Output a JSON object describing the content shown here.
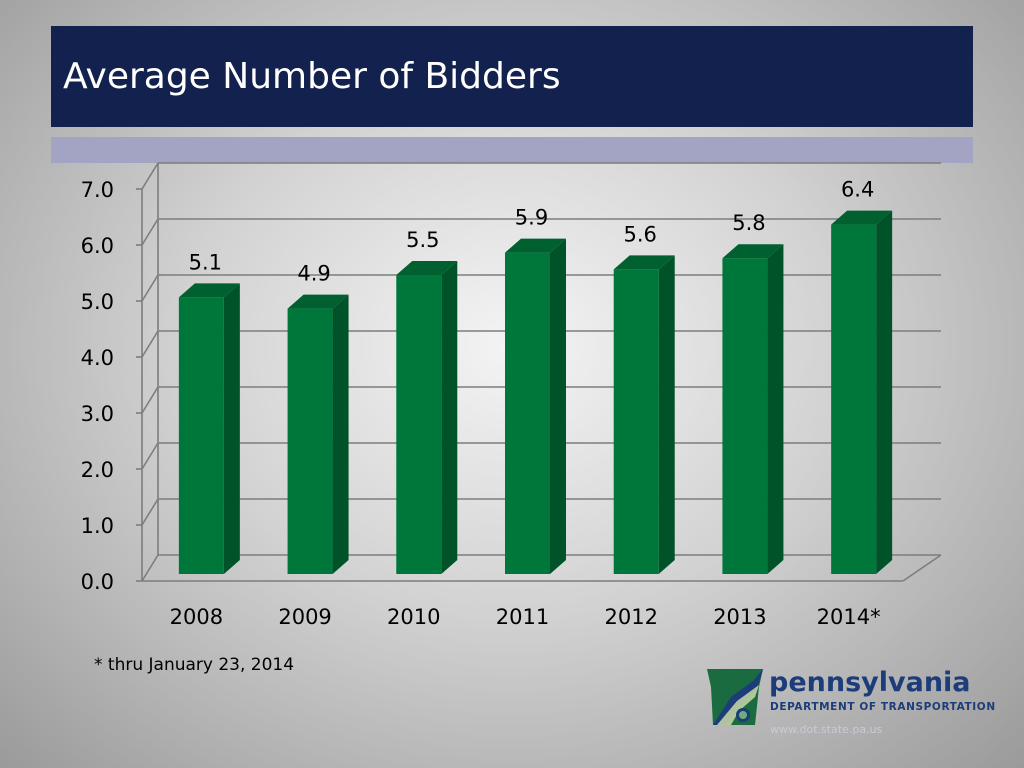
{
  "slide": {
    "title": "Average Number of Bidders",
    "footnote": "* thru January 23, 2014"
  },
  "logo": {
    "name": "pennsylvania",
    "department": "DEPARTMENT OF TRANSPORTATION",
    "url": "www.dot.state.pa.us"
  },
  "colors": {
    "title_bar": "#13214f",
    "sub_bar": "#a3a3c4",
    "bar_front": "#00773a",
    "bar_side": "#005228",
    "bar_top": "#00602f"
  },
  "chart_data": {
    "type": "bar",
    "categories": [
      "2008",
      "2009",
      "2010",
      "2011",
      "2012",
      "2013",
      "2014*"
    ],
    "values": [
      5.1,
      4.9,
      5.5,
      5.9,
      5.6,
      5.8,
      6.4
    ],
    "value_labels": [
      "5.1",
      "4.9",
      "5.5",
      "5.9",
      "5.6",
      "5.8",
      "6.4"
    ],
    "yticks": [
      "0.0",
      "1.0",
      "2.0",
      "3.0",
      "4.0",
      "5.0",
      "6.0",
      "7.0"
    ],
    "ylim": [
      0,
      7
    ],
    "grid": true,
    "legend": "none",
    "style": "3d"
  }
}
